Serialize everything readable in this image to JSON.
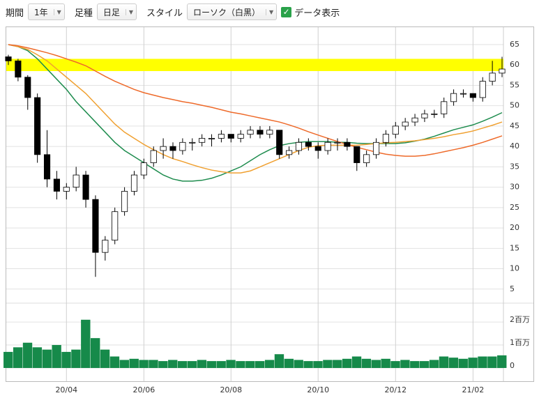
{
  "toolbar": {
    "period_label": "期間",
    "period_value": "1年",
    "bar_label": "足種",
    "bar_value": "日足",
    "style_label": "スタイル",
    "style_value": "ローソク（白黒）",
    "data_label": "データ表示"
  },
  "chart_data": {
    "type": "candlestick",
    "categories": [
      null,
      null,
      null,
      null,
      null,
      null,
      "20/04",
      null,
      null,
      null,
      null,
      null,
      null,
      null,
      "20/06",
      null,
      null,
      null,
      null,
      null,
      null,
      null,
      null,
      "20/08",
      null,
      null,
      null,
      null,
      null,
      null,
      null,
      null,
      "20/10",
      null,
      null,
      null,
      null,
      null,
      null,
      null,
      "20/12",
      null,
      null,
      null,
      null,
      null,
      null,
      null,
      "21/02",
      null,
      null,
      null
    ],
    "open": [
      62,
      61,
      57,
      52,
      38,
      32,
      29,
      30,
      33,
      27,
      14,
      17,
      24,
      29,
      33,
      36,
      39,
      40,
      39,
      41,
      41,
      42,
      42,
      43,
      42,
      43,
      44,
      43,
      44,
      38,
      39,
      41,
      40,
      39,
      41,
      41,
      40,
      36,
      38,
      41,
      43,
      45,
      46,
      47,
      48,
      48,
      51,
      53,
      53,
      52,
      56,
      58
    ],
    "high": [
      62.5,
      61.5,
      57.5,
      53,
      44,
      34,
      31,
      35,
      34,
      28,
      18,
      25,
      30,
      34,
      37,
      40,
      42,
      41,
      42,
      42,
      43,
      43,
      44,
      43,
      44,
      45,
      45,
      45,
      44,
      40,
      42,
      42,
      41,
      42,
      42,
      42,
      40,
      39,
      42,
      44,
      46,
      47,
      48,
      49,
      49,
      52,
      54,
      54,
      53,
      57,
      61,
      62
    ],
    "low": [
      60,
      56,
      49,
      36,
      30,
      27,
      27,
      29,
      25,
      8,
      12,
      16,
      23,
      28,
      32,
      35,
      37,
      37,
      38,
      39,
      40,
      40,
      41,
      41,
      41,
      42,
      42,
      42,
      37,
      37,
      38,
      39,
      37,
      38,
      39,
      39,
      34,
      35,
      37,
      40,
      42,
      44,
      45,
      46,
      47,
      47,
      50,
      52,
      51,
      51,
      55,
      57
    ],
    "close": [
      61,
      57,
      52,
      38,
      32,
      29,
      30,
      33,
      27,
      14,
      17,
      24,
      29,
      33,
      36,
      39,
      40,
      39,
      41,
      41,
      42,
      42,
      43,
      42,
      43,
      44,
      43,
      44,
      38,
      39,
      41,
      40,
      39,
      41,
      41,
      40,
      36,
      38,
      41,
      43,
      45,
      46,
      47,
      48,
      48,
      51,
      53,
      53,
      52,
      56,
      58,
      59
    ],
    "series": [
      {
        "color": "#1e8c4e",
        "values": [
          65,
          64.5,
          63.5,
          61.5,
          59,
          56.5,
          54,
          51,
          48.5,
          46,
          43.5,
          41,
          39,
          37.5,
          36,
          34.5,
          33,
          32,
          31.5,
          31.5,
          31.7,
          32.2,
          33,
          34,
          35,
          36.5,
          38,
          39.2,
          40.2,
          40.7,
          41,
          41.2,
          41.2,
          41.2,
          41,
          41,
          40.8,
          40.7,
          40.7,
          40.7,
          40.7,
          40.9,
          41.3,
          41.8,
          42.5,
          43.3,
          44.1,
          44.7,
          45.3,
          46.2,
          47.2,
          48.3
        ]
      },
      {
        "color": "#f0a030",
        "values": [
          65,
          64.5,
          63.8,
          62.5,
          61,
          59,
          57,
          55,
          53,
          50.5,
          48,
          45.5,
          43.5,
          42,
          40.5,
          39.2,
          38,
          37,
          36.3,
          35.5,
          34.8,
          34.2,
          33.8,
          33.5,
          33.5,
          34,
          35,
          36,
          37,
          38,
          39,
          39.8,
          40.2,
          40.3,
          40.3,
          40.3,
          40.3,
          40.5,
          40.7,
          40.9,
          41,
          41.2,
          41.4,
          41.7,
          42,
          42.4,
          42.9,
          43.3,
          43.8,
          44.5,
          45.2,
          46
        ]
      },
      {
        "color": "#ee6a2a",
        "values": [
          65,
          64.7,
          64.2,
          63.6,
          63,
          62.3,
          61.5,
          60.7,
          59.8,
          58.5,
          57.2,
          56,
          55,
          54,
          53.2,
          52.6,
          52,
          51.5,
          51,
          50.6,
          50.1,
          49.6,
          49,
          48.4,
          48,
          47.5,
          47,
          46.5,
          46,
          45.3,
          44.5,
          43.6,
          42.8,
          42,
          41.2,
          40.5,
          39.8,
          39.2,
          38.6,
          38.1,
          37.8,
          37.6,
          37.6,
          37.8,
          38.2,
          38.7,
          39.2,
          39.7,
          40.3,
          41,
          41.8,
          42.6
        ]
      }
    ],
    "up_color": "#ffffff",
    "down_color": "#000000",
    "band": {
      "from": 58.5,
      "to": 61.5,
      "color": "#ffff00"
    },
    "ylim": [
      2.4,
      69.1
    ],
    "yticks": [
      5,
      10,
      15,
      20,
      25,
      30,
      35,
      40,
      45,
      50,
      55,
      60,
      65
    ],
    "grid": true,
    "volume": {
      "color": "#168a4a",
      "values": [
        700000,
        900000,
        1100000,
        900000,
        800000,
        1000000,
        700000,
        800000,
        2100000,
        1300000,
        800000,
        500000,
        350000,
        400000,
        350000,
        350000,
        300000,
        350000,
        300000,
        300000,
        350000,
        300000,
        300000,
        350000,
        300000,
        300000,
        300000,
        350000,
        600000,
        400000,
        350000,
        300000,
        300000,
        350000,
        350000,
        400000,
        500000,
        400000,
        350000,
        400000,
        300000,
        350000,
        300000,
        300000,
        350000,
        500000,
        450000,
        400000,
        450000,
        500000,
        500000,
        550000
      ],
      "ylim": [
        0,
        2670000
      ],
      "yticks": [
        0,
        {
          "value": 1000000,
          "label": "1百万"
        },
        {
          "value": 2000000,
          "label": "2百万"
        }
      ]
    }
  }
}
